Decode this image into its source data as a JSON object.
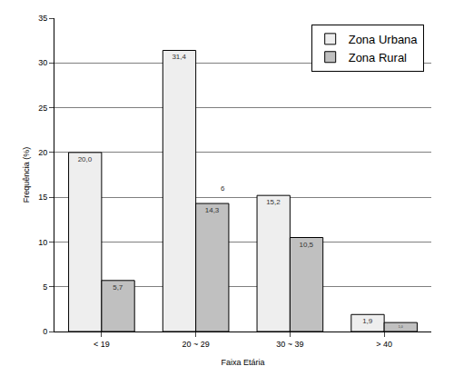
{
  "chart_data": {
    "type": "bar",
    "x_label": "Faixa Etária",
    "y_label": "Frequência (%)",
    "categories": [
      "< 19",
      "20 ~ 29",
      "30 ~ 39",
      "> 40"
    ],
    "series": [
      {
        "name": "Zona Urbana",
        "color": "#eeeeee",
        "values": [
          20.0,
          31.4,
          15.2,
          1.9
        ],
        "value_labels": [
          "20,0",
          "31,4",
          "15,2",
          "1,9"
        ]
      },
      {
        "name": "Zona Rural",
        "color": "#c0c0c0",
        "values": [
          5.7,
          14.3,
          10.5,
          1.0
        ],
        "value_labels": [
          "5,7",
          "14,3",
          "10,5",
          "1,0"
        ]
      }
    ],
    "ylim": [
      0,
      35
    ],
    "yticks": [
      0,
      5,
      10,
      15,
      20,
      25,
      30,
      35
    ],
    "grid": true,
    "legend": "top right",
    "data_labels": true,
    "annotations": [
      {
        "text": "6",
        "x": "20 ~ 29",
        "y": 16
      }
    ]
  }
}
